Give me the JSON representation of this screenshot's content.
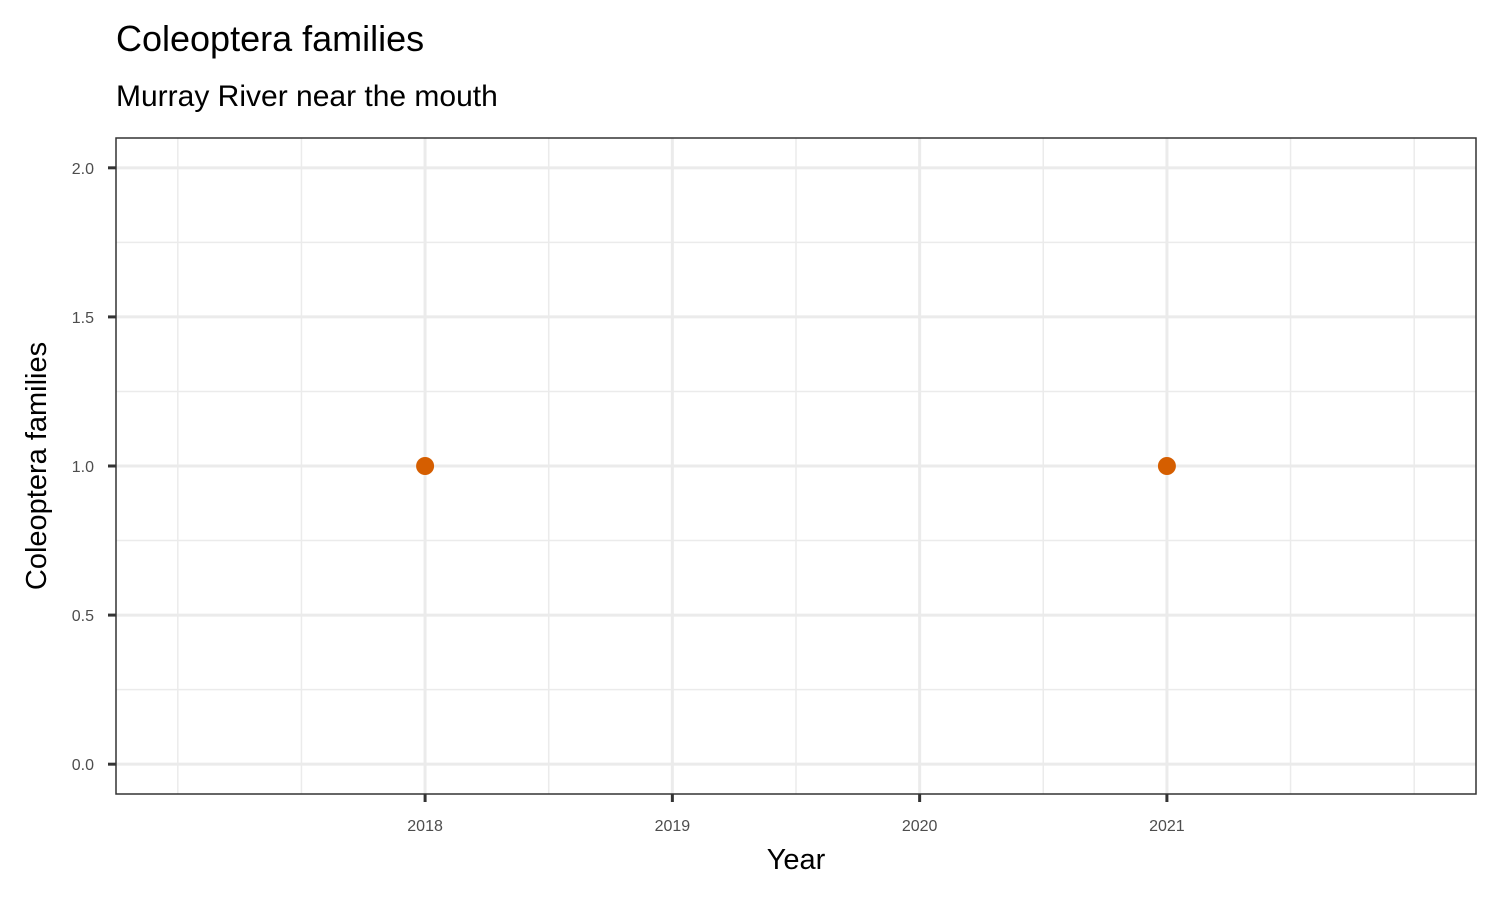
{
  "chart_data": {
    "type": "scatter",
    "title": "Coleoptera families",
    "subtitle": "Murray River near the mouth",
    "xlabel": "Year",
    "ylabel": "Coleoptera families",
    "xlim": [
      2016.75,
      2022.25
    ],
    "ylim": [
      -0.1,
      2.1
    ],
    "x_ticks": [
      2018,
      2019,
      2020,
      2021
    ],
    "x_minor_ticks": [
      2017,
      2017.5,
      2018.5,
      2019.5,
      2020.5,
      2021.5,
      2022
    ],
    "y_ticks": [
      0.0,
      0.5,
      1.0,
      1.5,
      2.0
    ],
    "y_minor_ticks": [
      0.25,
      0.75,
      1.25,
      1.75
    ],
    "grid": true,
    "legend": "none",
    "point_color": "#D55E00",
    "grid_color": "#EBEBEB",
    "series": [
      {
        "x": [
          2018,
          2021
        ],
        "y": [
          1,
          1
        ]
      }
    ]
  }
}
